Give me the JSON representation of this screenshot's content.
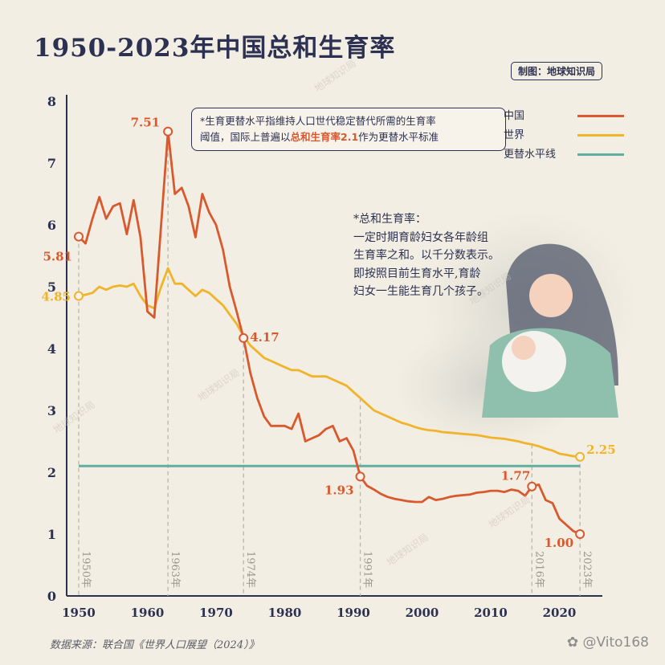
{
  "title": "1950-2023年中国总和生育率",
  "credit": "制图：地球知识局",
  "source": "数据来源：联合国《世界人口展望（2024）》",
  "watermark": "地球知识局",
  "social_handle": "@Vito168",
  "callout": {
    "line1": "*生育更替水平指维持人口世代稳定替代所需的生育率",
    "line2_pre": "阈值，国际上普遍以",
    "line2_hl": "总和生育率2.1",
    "line2_post": "作为更替水平标准"
  },
  "definition": {
    "lines": [
      "*总和生育率：",
      "一定时期育龄妇女各年龄组",
      "生育率之和。以千分数表示。",
      "即按照目前生育水平,育龄",
      "妇女一生能生育几个孩子。"
    ]
  },
  "legend": {
    "china": "中国",
    "world": "世界",
    "replacement": "更替水平线"
  },
  "colors": {
    "china": "#d9592e",
    "world": "#f0b42a",
    "replacement": "#5fae9f",
    "text": "#2c3152",
    "background": "#f3eee3"
  },
  "chart_data": {
    "type": "line",
    "title": "1950-2023年中国总和生育率",
    "xlim": [
      1948,
      2025
    ],
    "ylim": [
      0,
      8
    ],
    "x_ticks": [
      1950,
      1960,
      1970,
      1980,
      1990,
      2000,
      2010,
      2020
    ],
    "y_ticks": [
      0,
      1,
      2,
      3,
      4,
      5,
      6,
      7,
      8
    ],
    "replacement_level": 2.1,
    "series": [
      {
        "name": "中国",
        "x": [
          1950,
          1951,
          1952,
          1953,
          1954,
          1955,
          1956,
          1957,
          1958,
          1959,
          1960,
          1961,
          1962,
          1963,
          1964,
          1965,
          1966,
          1967,
          1968,
          1969,
          1970,
          1971,
          1972,
          1973,
          1974,
          1975,
          1976,
          1977,
          1978,
          1979,
          1980,
          1981,
          1982,
          1983,
          1984,
          1985,
          1986,
          1987,
          1988,
          1989,
          1990,
          1991,
          1992,
          1993,
          1994,
          1995,
          1996,
          1997,
          1998,
          1999,
          2000,
          2001,
          2002,
          2003,
          2004,
          2005,
          2006,
          2007,
          2008,
          2009,
          2010,
          2011,
          2012,
          2013,
          2014,
          2015,
          2016,
          2017,
          2018,
          2019,
          2020,
          2021,
          2022,
          2023
        ],
        "values": [
          5.81,
          5.7,
          6.1,
          6.45,
          6.1,
          6.3,
          6.35,
          5.85,
          6.4,
          5.8,
          4.6,
          4.5,
          6.0,
          7.51,
          6.5,
          6.6,
          6.3,
          5.8,
          6.5,
          6.2,
          6.0,
          5.6,
          5.0,
          4.6,
          4.17,
          3.6,
          3.2,
          2.9,
          2.75,
          2.75,
          2.75,
          2.7,
          2.95,
          2.5,
          2.55,
          2.6,
          2.7,
          2.75,
          2.5,
          2.55,
          2.35,
          1.93,
          1.78,
          1.72,
          1.65,
          1.6,
          1.57,
          1.55,
          1.53,
          1.52,
          1.52,
          1.6,
          1.55,
          1.57,
          1.6,
          1.62,
          1.63,
          1.64,
          1.67,
          1.68,
          1.7,
          1.7,
          1.68,
          1.72,
          1.7,
          1.62,
          1.77,
          1.8,
          1.55,
          1.5,
          1.25,
          1.15,
          1.05,
          1.0
        ]
      },
      {
        "name": "世界",
        "x": [
          1950,
          1951,
          1952,
          1953,
          1954,
          1955,
          1956,
          1957,
          1958,
          1959,
          1960,
          1961,
          1962,
          1963,
          1964,
          1965,
          1966,
          1967,
          1968,
          1969,
          1970,
          1971,
          1972,
          1973,
          1974,
          1975,
          1976,
          1977,
          1978,
          1979,
          1980,
          1981,
          1982,
          1983,
          1984,
          1985,
          1986,
          1987,
          1988,
          1989,
          1990,
          1991,
          1992,
          1993,
          1994,
          1995,
          1996,
          1997,
          1998,
          1999,
          2000,
          2001,
          2002,
          2003,
          2004,
          2005,
          2006,
          2007,
          2008,
          2009,
          2010,
          2011,
          2012,
          2013,
          2014,
          2015,
          2016,
          2017,
          2018,
          2019,
          2020,
          2021,
          2022,
          2023
        ],
        "values": [
          4.85,
          4.87,
          4.9,
          5.0,
          4.95,
          5.0,
          5.02,
          5.0,
          5.05,
          4.85,
          4.7,
          4.65,
          5.0,
          5.3,
          5.05,
          5.05,
          4.95,
          4.85,
          4.95,
          4.9,
          4.8,
          4.7,
          4.55,
          4.4,
          4.2,
          4.05,
          3.95,
          3.85,
          3.8,
          3.75,
          3.7,
          3.65,
          3.65,
          3.6,
          3.55,
          3.55,
          3.55,
          3.5,
          3.45,
          3.4,
          3.3,
          3.2,
          3.1,
          3.0,
          2.95,
          2.9,
          2.85,
          2.8,
          2.77,
          2.73,
          2.7,
          2.68,
          2.67,
          2.65,
          2.64,
          2.63,
          2.62,
          2.61,
          2.6,
          2.58,
          2.56,
          2.55,
          2.54,
          2.52,
          2.5,
          2.47,
          2.45,
          2.42,
          2.38,
          2.35,
          2.3,
          2.28,
          2.26,
          2.25
        ]
      }
    ],
    "annotations": {
      "points": [
        {
          "series": "中国",
          "x": 1950,
          "y": 5.81,
          "label": "5.81"
        },
        {
          "series": "世界",
          "x": 1950,
          "y": 4.85,
          "label": "4.85"
        },
        {
          "series": "中国",
          "x": 1963,
          "y": 7.51,
          "label": "7.51"
        },
        {
          "series": "中国",
          "x": 1974,
          "y": 4.17,
          "label": "4.17"
        },
        {
          "series": "中国",
          "x": 1991,
          "y": 1.93,
          "label": "1.93"
        },
        {
          "series": "中国",
          "x": 2016,
          "y": 1.77,
          "label": "1.77"
        },
        {
          "series": "中国",
          "x": 2023,
          "y": 1.0,
          "label": "1.00"
        },
        {
          "series": "世界",
          "x": 2023,
          "y": 2.25,
          "label": "2.25"
        }
      ],
      "year_markers": [
        {
          "x": 1950,
          "label": "1950年"
        },
        {
          "x": 1963,
          "label": "1963年"
        },
        {
          "x": 1974,
          "label": "1974年"
        },
        {
          "x": 1991,
          "label": "1991年"
        },
        {
          "x": 2016,
          "label": "2016年"
        },
        {
          "x": 2023,
          "label": "2023年"
        }
      ]
    }
  }
}
